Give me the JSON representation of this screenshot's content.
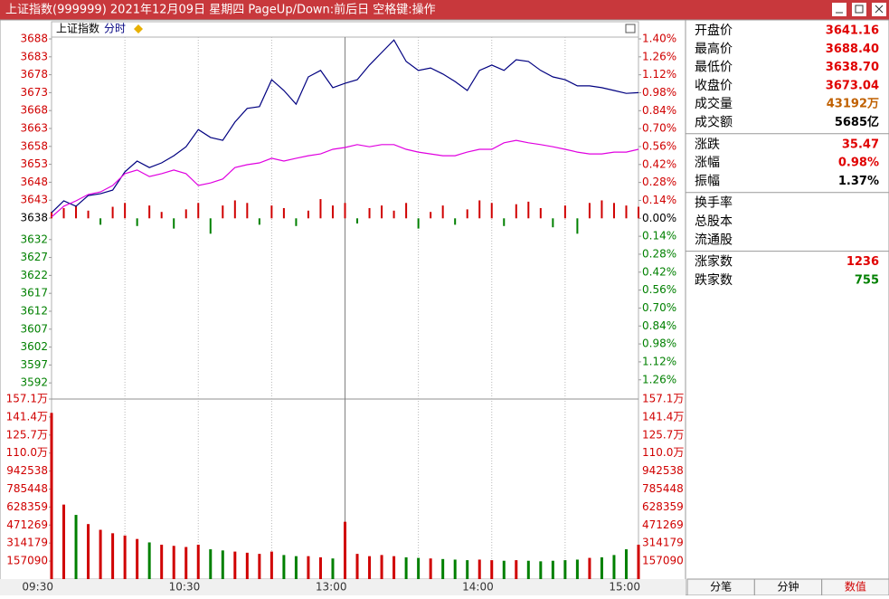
{
  "window_title": "上证指数(999999)  2021年12月09日  星期四  PageUp/Down:前后日  空格键:操作",
  "toolbar": {
    "name": "上证指数",
    "mode": "分时"
  },
  "chart_data": [
    {
      "type": "line",
      "x": [
        0,
        5,
        10,
        15,
        20,
        25,
        30,
        35,
        40,
        45,
        50,
        55,
        60,
        65,
        70,
        75,
        80,
        85,
        90,
        95,
        100,
        105,
        110,
        115,
        120,
        125,
        130,
        135,
        140,
        145,
        150,
        155,
        160,
        165,
        170,
        175,
        180,
        185,
        190,
        195,
        200,
        205,
        210,
        215,
        220,
        225,
        230,
        235,
        240
      ],
      "xlim": [
        0,
        240
      ],
      "series": [
        {
          "color": "#000080",
          "values": [
            3639.5,
            3642.8,
            3641.3,
            3644.3,
            3644.8,
            3645.8,
            3650.9,
            3653.9,
            3652.1,
            3653.4,
            3655.4,
            3657.9,
            3662.7,
            3660.5,
            3659.7,
            3664.8,
            3668.6,
            3669.1,
            3676.6,
            3673.6,
            3669.8,
            3677.4,
            3679.2,
            3674.4,
            3675.6,
            3676.6,
            3680.7,
            3684.2,
            3687.7,
            3681.7,
            3679.2,
            3679.9,
            3678.2,
            3676.1,
            3673.6,
            3679.2,
            3680.7,
            3679.2,
            3682.2,
            3681.7,
            3679.2,
            3677.4,
            3676.6,
            3674.9,
            3674.9,
            3674.4,
            3673.6,
            3672.8,
            3673.0
          ]
        },
        {
          "color": "#e000e0",
          "values": [
            3638.3,
            3641.3,
            3642.8,
            3644.6,
            3645.3,
            3647.1,
            3650.4,
            3651.4,
            3649.6,
            3650.4,
            3651.4,
            3650.4,
            3647.1,
            3647.8,
            3648.9,
            3652.1,
            3652.9,
            3653.4,
            3654.7,
            3653.9,
            3654.7,
            3655.4,
            3655.9,
            3657.2,
            3657.7,
            3658.5,
            3657.9,
            3658.5,
            3658.5,
            3657.2,
            3656.4,
            3655.9,
            3655.4,
            3655.4,
            3656.4,
            3657.2,
            3657.2,
            3659.0,
            3659.7,
            3659.0,
            3658.5,
            3657.9,
            3657.2,
            3656.4,
            3655.9,
            3655.9,
            3656.4,
            3656.4,
            3657.2
          ]
        },
        {
          "type": "bar",
          "axis": "y2",
          "up_color": "#d00000",
          "down_color": "#008000",
          "values": [
            0.05,
            0.08,
            0.1,
            0.06,
            -0.05,
            0.09,
            0.12,
            -0.06,
            0.1,
            0.05,
            -0.08,
            0.07,
            0.12,
            -0.12,
            0.1,
            0.14,
            0.12,
            -0.05,
            0.1,
            0.08,
            -0.06,
            0.06,
            0.15,
            0.1,
            0.12,
            -0.04,
            0.08,
            0.1,
            0.06,
            0.12,
            -0.08,
            0.05,
            0.1,
            -0.05,
            0.07,
            0.14,
            0.12,
            -0.06,
            0.11,
            0.13,
            0.08,
            -0.07,
            0.1,
            -0.12,
            0.12,
            0.14,
            0.12,
            0.1,
            0.09
          ]
        }
      ],
      "ylim": [
        3587.5,
        3688
      ],
      "yticks": [
        3688,
        3683,
        3678,
        3673,
        3668,
        3663,
        3658,
        3653,
        3648,
        3643,
        3638,
        3632,
        3627,
        3622,
        3617,
        3612,
        3607,
        3602,
        3597,
        3592
      ],
      "y2lim": [
        -1.41,
        1.4
      ],
      "y2ticks": [
        {
          "value": 1.4,
          "label": "1.40%"
        },
        {
          "value": 1.26,
          "label": "1.26%"
        },
        {
          "value": 1.12,
          "label": "1.12%"
        },
        {
          "value": 0.98,
          "label": "0.98%"
        },
        {
          "value": 0.84,
          "label": "0.84%"
        },
        {
          "value": 0.7,
          "label": "0.70%"
        },
        {
          "value": 0.56,
          "label": "0.56%"
        },
        {
          "value": 0.42,
          "label": "0.42%"
        },
        {
          "value": 0.28,
          "label": "0.28%"
        },
        {
          "value": 0.14,
          "label": "0.14%"
        },
        {
          "value": 0,
          "label": "0.00%"
        },
        {
          "value": -0.14,
          "label": "0.14%"
        },
        {
          "value": -0.28,
          "label": "0.28%"
        },
        {
          "value": -0.42,
          "label": "0.42%"
        },
        {
          "value": -0.56,
          "label": "0.56%"
        },
        {
          "value": -0.7,
          "label": "0.70%"
        },
        {
          "value": -0.84,
          "label": "0.84%"
        },
        {
          "value": -0.98,
          "label": "0.98%"
        },
        {
          "value": -1.12,
          "label": "1.12%"
        },
        {
          "value": -1.26,
          "label": "1.26%"
        }
      ]
    },
    {
      "type": "bar",
      "x": [
        0,
        5,
        10,
        15,
        20,
        25,
        30,
        35,
        40,
        45,
        50,
        55,
        60,
        65,
        70,
        75,
        80,
        85,
        90,
        95,
        100,
        105,
        110,
        115,
        120,
        125,
        130,
        135,
        140,
        145,
        150,
        155,
        160,
        165,
        170,
        175,
        180,
        185,
        190,
        195,
        200,
        205,
        210,
        215,
        220,
        225,
        230,
        235,
        240
      ],
      "values": [
        1450000,
        650000,
        560000,
        480000,
        430000,
        400000,
        380000,
        350000,
        320000,
        300000,
        290000,
        280000,
        300000,
        260000,
        250000,
        240000,
        230000,
        220000,
        240000,
        210000,
        200000,
        200000,
        190000,
        180000,
        500000,
        220000,
        200000,
        210000,
        200000,
        190000,
        185000,
        180000,
        175000,
        170000,
        165000,
        170000,
        165000,
        160000,
        165000,
        160000,
        155000,
        160000,
        165000,
        170000,
        185000,
        190000,
        210000,
        260000,
        300000
      ],
      "up_color": "#d00000",
      "down_color": "#008000",
      "ylim": [
        0,
        1570900
      ],
      "yticks": [
        {
          "value": 1570900,
          "label": "157.1万"
        },
        {
          "value": 1413809,
          "label": "141.4万"
        },
        {
          "value": 1256719,
          "label": "125.7万"
        },
        {
          "value": 1099629,
          "label": "110.0万"
        },
        942538,
        785448,
        628359,
        471269,
        314179,
        157090
      ],
      "xlim": [
        0,
        240
      ],
      "xticks": [
        {
          "value": 0,
          "label": "09:30"
        },
        {
          "value": 30,
          "label": null
        },
        {
          "value": 60,
          "label": "10:30"
        },
        {
          "value": 90,
          "label": null
        },
        {
          "value": 120,
          "label": "13:00"
        },
        {
          "value": 150,
          "label": null
        },
        {
          "value": 180,
          "label": "14:00"
        },
        {
          "value": 210,
          "label": null
        },
        {
          "value": 240,
          "label": "15:00"
        }
      ]
    }
  ],
  "info": [
    [
      {
        "label": "开盘价",
        "value": "3641.16",
        "color": "#e00000"
      },
      {
        "label": "最高价",
        "value": "3688.40",
        "color": "#e00000"
      },
      {
        "label": "最低价",
        "value": "3638.70",
        "color": "#e00000"
      },
      {
        "label": "收盘价",
        "value": "3673.04",
        "color": "#e00000"
      },
      {
        "label": "成交量",
        "value": "43192万",
        "color": "#c06000"
      },
      {
        "label": "成交额",
        "value": "5685亿",
        "color": "#000000"
      }
    ],
    [
      {
        "label": "涨跌",
        "value": "35.47",
        "color": "#e00000"
      },
      {
        "label": "涨幅",
        "value": "0.98%",
        "color": "#e00000"
      },
      {
        "label": "振幅",
        "value": "1.37%",
        "color": "#000000"
      }
    ],
    [
      {
        "label": "换手率"
      },
      {
        "label": "总股本"
      },
      {
        "label": "流通股"
      }
    ],
    [
      {
        "label": "涨家数",
        "value": "1236",
        "color": "#e00000"
      },
      {
        "label": "跌家数",
        "value": "755",
        "color": "#008000"
      }
    ]
  ],
  "tabs": [
    "分笔",
    "分钟",
    "数值"
  ]
}
